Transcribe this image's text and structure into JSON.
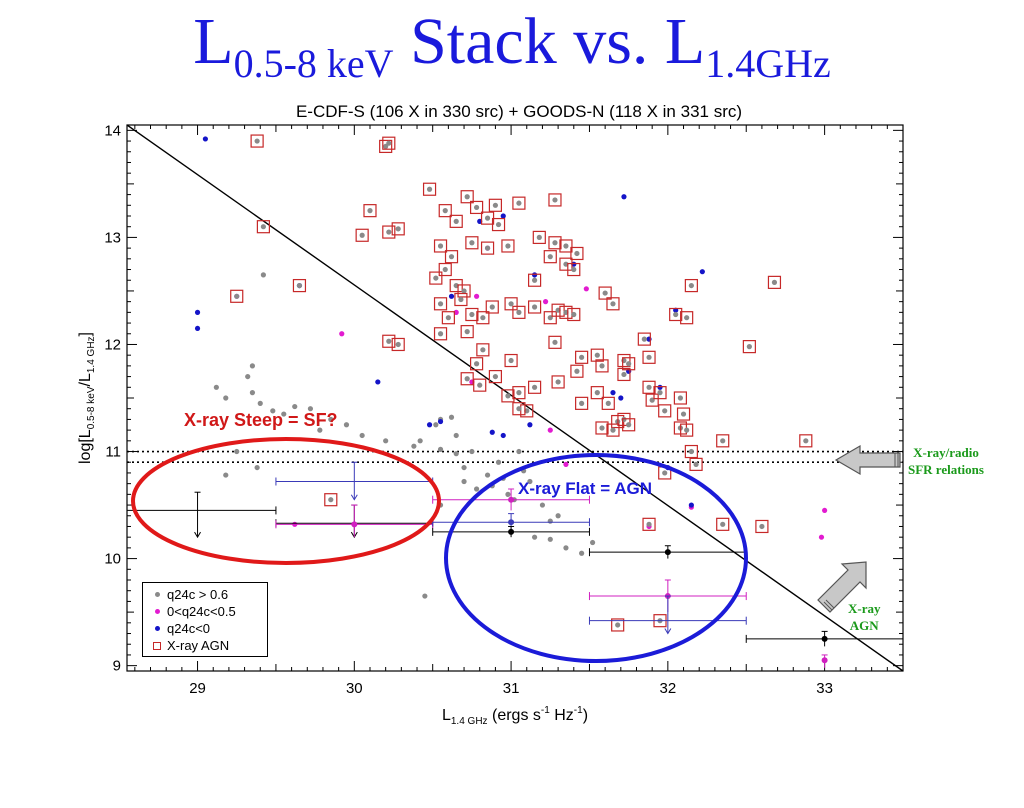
{
  "slide": {
    "title_parts": [
      "L",
      "0.5-8 keV",
      " Stack vs. L",
      "1.4GHz"
    ]
  },
  "colors": {
    "title_blue": "#1a1adc",
    "grey_points": "#8a8a8a",
    "magenta_points": "#e21bd0",
    "blue_points": "#1414c8",
    "agn_box": "#c62828",
    "steep_ellipse": "#e01919",
    "flat_ellipse": "#1b1bd8",
    "note_green": "#1b9a1b"
  },
  "chart_data": {
    "type": "scatter",
    "title": "E-CDF-S (106 X in 330 src) + GOODS-N (118 X in 331 src)",
    "xlabel_main": "L",
    "xlabel_sub": "1.4 GHz",
    "xlabel_units": " (ergs s",
    "xlabel_exp1": "-1",
    "xlabel_units2": " Hz",
    "xlabel_exp2": "-1",
    "xlabel_close": ")",
    "ylabel_pre": "log[L",
    "ylabel_sub1": "0.5-8 keV",
    "ylabel_mid": "/L",
    "ylabel_sub2": "1.4 GHz",
    "ylabel_post": "]",
    "xlim": [
      28.55,
      33.5
    ],
    "ylim": [
      8.95,
      14.05
    ],
    "x_ticks": [
      29,
      30,
      31,
      32,
      33
    ],
    "y_ticks": [
      9,
      10,
      11,
      12,
      13,
      14
    ],
    "legend_placement": "bottom-left",
    "legend": [
      "q24c > 0.6",
      "0<q24c<0.5",
      "q24c<0",
      "X-ray AGN"
    ],
    "dividing_line": [
      [
        28.55,
        14.05
      ],
      [
        33.5,
        8.95
      ]
    ],
    "sfr_relations": [
      11.0,
      10.9
    ],
    "series": [
      {
        "name": "q24c > 0.6",
        "marker": "grey",
        "points": [
          [
            29.12,
            11.6
          ],
          [
            29.18,
            11.5
          ],
          [
            29.35,
            11.8
          ],
          [
            29.32,
            11.7
          ],
          [
            29.35,
            11.55
          ],
          [
            29.4,
            11.45
          ],
          [
            29.48,
            11.38
          ],
          [
            29.55,
            11.35
          ],
          [
            29.62,
            11.42
          ],
          [
            29.72,
            11.4
          ],
          [
            29.78,
            11.2
          ],
          [
            29.85,
            11.3
          ],
          [
            29.95,
            11.25
          ],
          [
            30.05,
            11.15
          ],
          [
            30.2,
            11.1
          ],
          [
            30.38,
            11.05
          ],
          [
            30.55,
            11.3
          ],
          [
            30.62,
            11.32
          ],
          [
            30.65,
            11.15
          ],
          [
            30.55,
            11.02
          ],
          [
            30.65,
            10.98
          ],
          [
            30.75,
            11.0
          ],
          [
            30.7,
            10.85
          ],
          [
            30.85,
            10.78
          ],
          [
            30.95,
            10.75
          ],
          [
            31.08,
            10.82
          ],
          [
            31.12,
            10.72
          ],
          [
            30.88,
            10.68
          ],
          [
            30.78,
            10.65
          ],
          [
            30.7,
            10.72
          ],
          [
            30.98,
            10.6
          ],
          [
            31.2,
            10.5
          ],
          [
            31.25,
            10.35
          ],
          [
            31.15,
            10.2
          ],
          [
            31.25,
            10.18
          ],
          [
            31.35,
            10.1
          ],
          [
            31.45,
            10.05
          ],
          [
            31.52,
            10.15
          ],
          [
            30.45,
            9.65
          ],
          [
            29.25,
            11.0
          ],
          [
            29.38,
            10.85
          ],
          [
            29.18,
            10.78
          ],
          [
            29.42,
            12.65
          ],
          [
            30.42,
            11.1
          ],
          [
            30.52,
            11.25
          ],
          [
            31.05,
            11.0
          ],
          [
            30.92,
            10.9
          ],
          [
            31.02,
            10.55
          ],
          [
            31.3,
            10.4
          ],
          [
            30.55,
            10.5
          ]
        ]
      },
      {
        "name": "0<q24c<0.5",
        "marker": "magenta",
        "points": [
          [
            29.25,
            12.45
          ],
          [
            29.92,
            12.1
          ],
          [
            30.75,
            11.65
          ],
          [
            30.78,
            12.45
          ],
          [
            31.25,
            11.2
          ],
          [
            31.35,
            10.88
          ],
          [
            31.48,
            12.52
          ],
          [
            31.88,
            10.3
          ],
          [
            32.15,
            10.48
          ],
          [
            32.98,
            10.2
          ],
          [
            33.0,
            10.45
          ],
          [
            29.62,
            10.32
          ],
          [
            30.65,
            12.3
          ],
          [
            30.85,
            12.9
          ],
          [
            31.22,
            12.4
          ]
        ]
      },
      {
        "name": "q24c<0",
        "marker": "blue",
        "points": [
          [
            29.05,
            13.92
          ],
          [
            29.0,
            12.3
          ],
          [
            29.0,
            12.15
          ],
          [
            29.65,
            12.55
          ],
          [
            30.15,
            11.65
          ],
          [
            30.55,
            11.28
          ],
          [
            30.88,
            11.18
          ],
          [
            30.95,
            11.15
          ],
          [
            31.12,
            11.25
          ],
          [
            30.8,
            13.15
          ],
          [
            30.95,
            13.2
          ],
          [
            31.15,
            12.65
          ],
          [
            31.72,
            13.38
          ],
          [
            32.22,
            12.68
          ],
          [
            31.88,
            12.05
          ],
          [
            31.95,
            11.6
          ],
          [
            31.75,
            11.75
          ],
          [
            31.65,
            11.55
          ],
          [
            31.7,
            11.5
          ],
          [
            32.0,
            10.85
          ],
          [
            32.15,
            10.5
          ],
          [
            30.62,
            12.45
          ],
          [
            31.4,
            12.75
          ],
          [
            32.05,
            12.32
          ],
          [
            30.48,
            11.25
          ]
        ]
      },
      {
        "name": "X-ray AGN",
        "marker": "agn",
        "points": [
          [
            29.38,
            13.9
          ],
          [
            29.42,
            13.1
          ],
          [
            29.25,
            12.45
          ],
          [
            29.65,
            12.55
          ],
          [
            30.2,
            13.85
          ],
          [
            30.22,
            13.88
          ],
          [
            30.22,
            13.05
          ],
          [
            30.28,
            13.08
          ],
          [
            30.1,
            13.25
          ],
          [
            30.05,
            13.02
          ],
          [
            30.28,
            12.0
          ],
          [
            30.22,
            12.03
          ],
          [
            30.48,
            13.45
          ],
          [
            30.58,
            13.25
          ],
          [
            30.65,
            13.15
          ],
          [
            30.72,
            13.38
          ],
          [
            30.78,
            13.28
          ],
          [
            30.9,
            13.3
          ],
          [
            30.85,
            13.18
          ],
          [
            30.92,
            13.12
          ],
          [
            31.05,
            13.32
          ],
          [
            31.28,
            13.35
          ],
          [
            30.55,
            12.92
          ],
          [
            30.62,
            12.82
          ],
          [
            30.75,
            12.95
          ],
          [
            30.85,
            12.9
          ],
          [
            30.98,
            12.92
          ],
          [
            31.18,
            13.0
          ],
          [
            31.28,
            12.95
          ],
          [
            31.35,
            12.92
          ],
          [
            31.42,
            12.85
          ],
          [
            31.25,
            12.82
          ],
          [
            31.35,
            12.75
          ],
          [
            31.4,
            12.7
          ],
          [
            31.15,
            12.6
          ],
          [
            30.52,
            12.62
          ],
          [
            30.58,
            12.7
          ],
          [
            30.65,
            12.55
          ],
          [
            30.7,
            12.5
          ],
          [
            30.68,
            12.42
          ],
          [
            30.75,
            12.28
          ],
          [
            30.82,
            12.25
          ],
          [
            30.55,
            12.38
          ],
          [
            30.6,
            12.25
          ],
          [
            30.55,
            12.1
          ],
          [
            30.72,
            12.12
          ],
          [
            30.88,
            12.35
          ],
          [
            31.0,
            12.38
          ],
          [
            31.05,
            12.3
          ],
          [
            31.15,
            12.35
          ],
          [
            31.25,
            12.25
          ],
          [
            31.3,
            12.32
          ],
          [
            31.35,
            12.3
          ],
          [
            31.4,
            12.28
          ],
          [
            31.6,
            12.48
          ],
          [
            31.65,
            12.38
          ],
          [
            31.28,
            12.02
          ],
          [
            31.45,
            11.88
          ],
          [
            30.82,
            11.95
          ],
          [
            31.0,
            11.85
          ],
          [
            30.9,
            11.7
          ],
          [
            31.05,
            11.55
          ],
          [
            31.1,
            11.38
          ],
          [
            31.3,
            11.65
          ],
          [
            31.45,
            11.45
          ],
          [
            31.55,
            11.55
          ],
          [
            31.58,
            11.22
          ],
          [
            31.62,
            11.45
          ],
          [
            31.68,
            11.28
          ],
          [
            31.72,
            11.3
          ],
          [
            31.72,
            11.85
          ],
          [
            31.75,
            11.82
          ],
          [
            31.72,
            11.72
          ],
          [
            31.88,
            11.6
          ],
          [
            31.9,
            11.48
          ],
          [
            31.95,
            11.55
          ],
          [
            31.98,
            11.38
          ],
          [
            32.08,
            11.5
          ],
          [
            32.1,
            11.35
          ],
          [
            32.08,
            11.22
          ],
          [
            32.12,
            11.2
          ],
          [
            32.15,
            11.0
          ],
          [
            32.35,
            11.1
          ],
          [
            32.52,
            11.98
          ],
          [
            32.68,
            12.58
          ],
          [
            32.15,
            12.55
          ],
          [
            32.12,
            12.25
          ],
          [
            32.05,
            12.28
          ],
          [
            31.85,
            12.05
          ],
          [
            31.88,
            11.88
          ],
          [
            31.65,
            11.2
          ],
          [
            31.75,
            11.25
          ],
          [
            31.58,
            11.8
          ],
          [
            31.55,
            11.9
          ],
          [
            31.98,
            10.8
          ],
          [
            32.18,
            10.88
          ],
          [
            32.35,
            10.32
          ],
          [
            32.6,
            10.3
          ],
          [
            32.88,
            11.1
          ],
          [
            30.72,
            11.68
          ],
          [
            30.8,
            11.62
          ],
          [
            31.05,
            11.4
          ],
          [
            31.15,
            11.6
          ],
          [
            29.85,
            10.55
          ],
          [
            31.68,
            9.38
          ],
          [
            31.95,
            9.42
          ],
          [
            30.98,
            11.52
          ],
          [
            30.78,
            11.82
          ],
          [
            31.42,
            11.75
          ],
          [
            31.88,
            10.32
          ]
        ]
      }
    ],
    "stack_points": [
      {
        "x": 29.0,
        "y": 10.45,
        "xerr": [
          28.55,
          29.5
        ],
        "yerr": [
          10.2,
          10.62
        ],
        "upper": true,
        "color": "#000"
      },
      {
        "x": 30.0,
        "y": 10.72,
        "xerr": [
          29.5,
          30.5
        ],
        "yerr": [
          10.55,
          10.9
        ],
        "upper": true,
        "color": "#3a3ab8"
      },
      {
        "x": 30.0,
        "y": 10.33,
        "xerr": [
          29.5,
          30.5
        ],
        "yerr": [
          10.2,
          10.5
        ],
        "upper": true,
        "color": "#000"
      },
      {
        "x": 30.0,
        "y": 10.32,
        "xerr": [
          29.5,
          30.5
        ],
        "yerr": [
          10.2,
          10.5
        ],
        "upper": false,
        "color": "#d020c0"
      },
      {
        "x": 31.0,
        "y": 10.55,
        "xerr": [
          30.5,
          31.5
        ],
        "yerr": [
          10.45,
          10.65
        ],
        "upper": false,
        "color": "#d020c0"
      },
      {
        "x": 31.0,
        "y": 10.34,
        "xerr": [
          30.5,
          31.5
        ],
        "yerr": [
          10.25,
          10.42
        ],
        "upper": false,
        "color": "#3a3ab8"
      },
      {
        "x": 31.0,
        "y": 10.25,
        "xerr": [
          30.5,
          31.5
        ],
        "yerr": [
          10.2,
          10.3
        ],
        "upper": false,
        "color": "#000"
      },
      {
        "x": 32.0,
        "y": 10.06,
        "xerr": [
          31.5,
          32.5
        ],
        "yerr": [
          10.0,
          10.12
        ],
        "upper": false,
        "color": "#000"
      },
      {
        "x": 32.0,
        "y": 9.65,
        "xerr": [
          31.5,
          32.5
        ],
        "yerr": [
          9.5,
          9.8
        ],
        "upper": false,
        "color": "#d020c0"
      },
      {
        "x": 32.0,
        "y": 9.42,
        "xerr": [
          31.5,
          32.5
        ],
        "yerr": [
          9.3,
          9.65
        ],
        "upper": true,
        "color": "#3a3ab8"
      },
      {
        "x": 33.0,
        "y": 9.25,
        "xerr": [
          32.5,
          33.5
        ],
        "yerr": [
          9.18,
          9.32
        ],
        "upper": false,
        "color": "#000"
      },
      {
        "x": 33.0,
        "y": 9.05,
        "xerr": [
          33.0,
          33.0
        ],
        "yerr": [
          8.98,
          9.1
        ],
        "upper": false,
        "color": "#d020c0"
      }
    ],
    "annotations": {
      "steep": "X-ray Steep  = SF?",
      "flat": "X-ray Flat = AGN"
    }
  },
  "side_notes": {
    "radio_line1": "X-ray/radio",
    "radio_line2": "SFR relations",
    "agn_line1": "X-ray",
    "agn_line2": "AGN"
  }
}
